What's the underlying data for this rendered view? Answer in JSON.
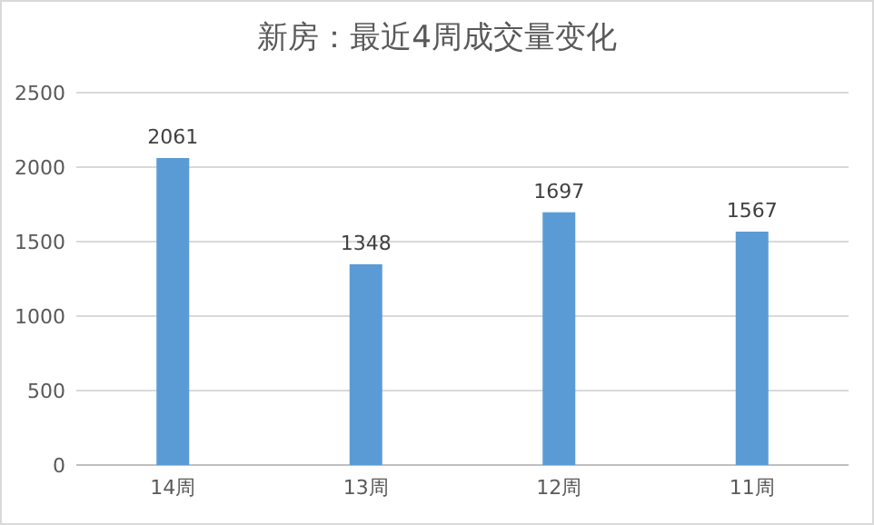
{
  "chart_data": {
    "type": "bar",
    "title": "新房：最近4周成交量变化",
    "categories": [
      "14周",
      "13周",
      "12周",
      "11周"
    ],
    "values": [
      2061,
      1348,
      1697,
      1567
    ],
    "color": "#5b9bd5",
    "ylim": [
      0,
      2500
    ],
    "yticks": [
      0,
      500,
      1000,
      1500,
      2000,
      2500
    ],
    "grid": "y",
    "data_labels": true
  }
}
